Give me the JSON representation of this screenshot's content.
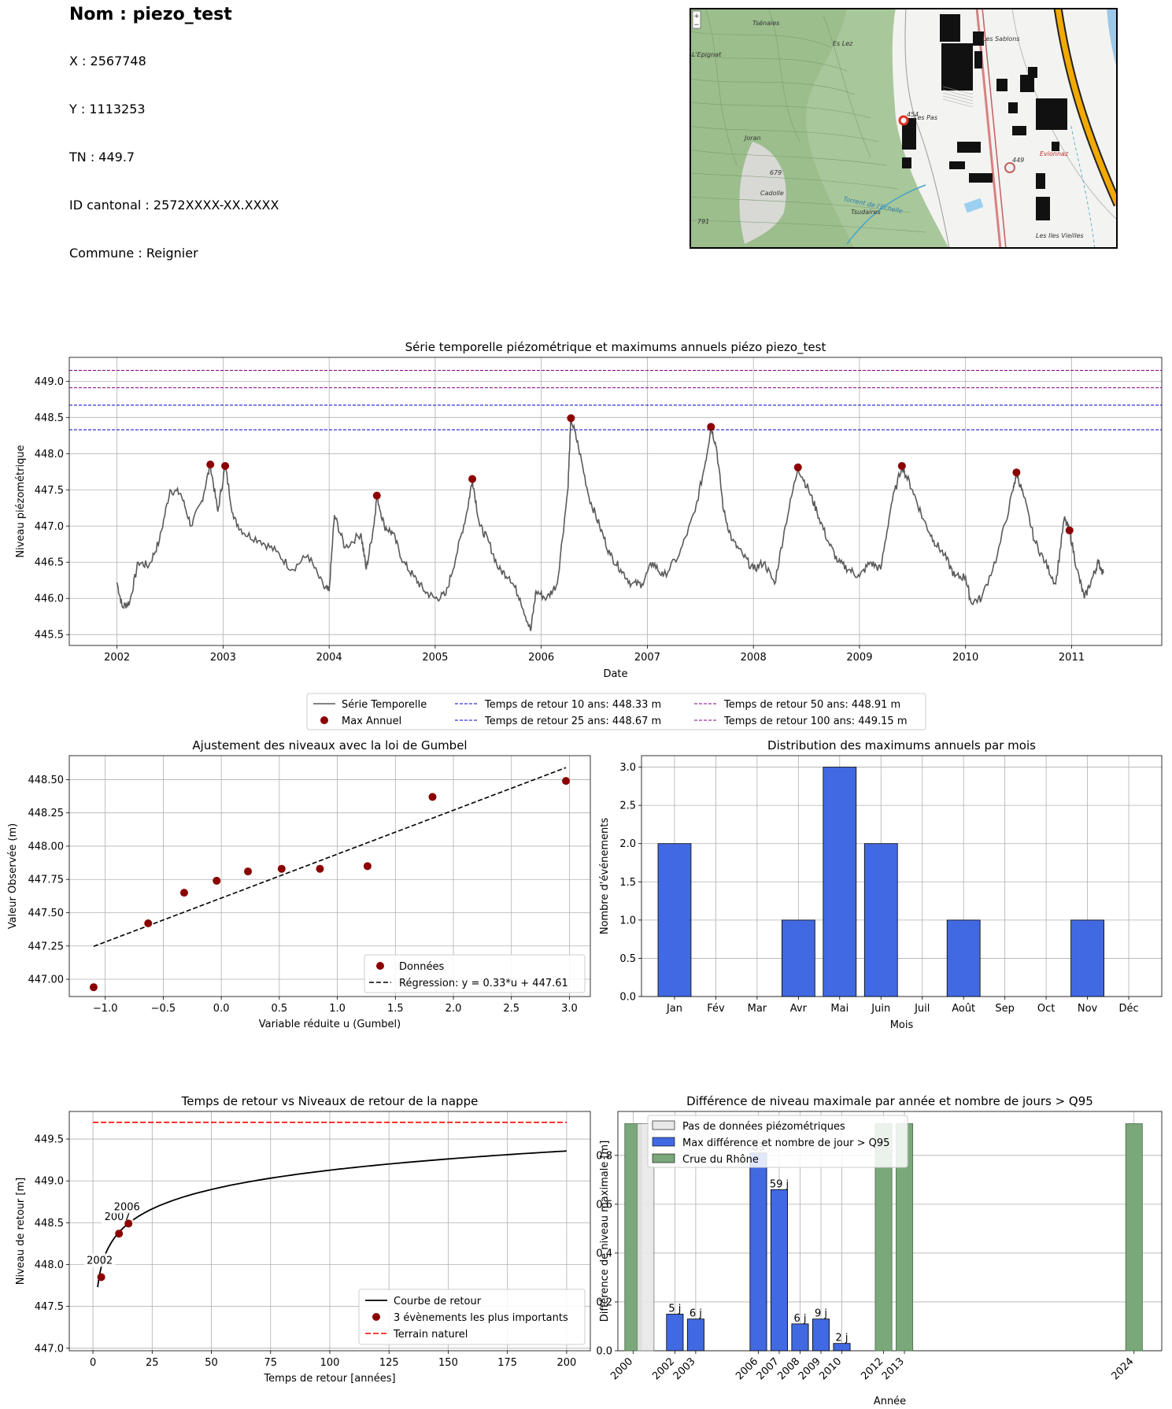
{
  "header": {
    "name_line": "Nom : piezo_test",
    "x_line": "X : 2567748",
    "y_line": "Y : 1113253",
    "tn_line": "TN : 449.7",
    "id_line": "ID cantonal : 2572XXXX-XX.XXXX",
    "commune_line": "Commune : Reignier"
  },
  "map": {
    "labels": [
      "Tsénaies",
      "Es Lez",
      "L'Epignat",
      "Les Sablons",
      "Les Pas",
      "Joran",
      "Evionnaz",
      "679",
      "Cadolle",
      "Torrent de l'Echelle",
      "Tsudaires",
      "791",
      "Les Iles Vieilles",
      "449",
      "454"
    ],
    "zoom_in": "+",
    "zoom_out": "−"
  },
  "chart_data": [
    {
      "id": "timeseries",
      "type": "line",
      "title": "Série temporelle piézométrique et maximums annuels piézo piezo_test",
      "xlabel": "Date",
      "ylabel": "Niveau piézométrique",
      "xlim": [
        2001.55,
        2011.85
      ],
      "ylim": [
        445.35,
        449.33
      ],
      "xticks": [
        2002,
        2003,
        2004,
        2005,
        2006,
        2007,
        2008,
        2009,
        2010,
        2011
      ],
      "yticks": [
        445.5,
        446.0,
        446.5,
        447.0,
        447.5,
        448.0,
        448.5,
        449.0
      ],
      "ytick_labels": [
        "445.5",
        "446.0",
        "446.5",
        "447.0",
        "447.5",
        "448.0",
        "448.5",
        "449.0"
      ],
      "grid": true,
      "series_line": {
        "name": "Série Temporelle",
        "color": "#5a5a5a",
        "keypoints": [
          [
            2002.0,
            446.22
          ],
          [
            2002.05,
            445.88
          ],
          [
            2002.12,
            445.95
          ],
          [
            2002.2,
            446.5
          ],
          [
            2002.3,
            446.45
          ],
          [
            2002.4,
            446.8
          ],
          [
            2002.5,
            447.5
          ],
          [
            2002.6,
            447.45
          ],
          [
            2002.7,
            447.0
          ],
          [
            2002.8,
            447.35
          ],
          [
            2002.88,
            447.85
          ],
          [
            2002.95,
            447.2
          ],
          [
            2003.02,
            447.83
          ],
          [
            2003.1,
            447.1
          ],
          [
            2003.2,
            446.9
          ],
          [
            2003.35,
            446.8
          ],
          [
            2003.5,
            446.65
          ],
          [
            2003.65,
            446.4
          ],
          [
            2003.8,
            446.6
          ],
          [
            2003.95,
            446.15
          ],
          [
            2004.0,
            446.1
          ],
          [
            2004.05,
            447.15
          ],
          [
            2004.15,
            446.7
          ],
          [
            2004.3,
            446.9
          ],
          [
            2004.35,
            446.4
          ],
          [
            2004.42,
            447.0
          ],
          [
            2004.45,
            447.42
          ],
          [
            2004.52,
            447.0
          ],
          [
            2004.6,
            446.9
          ],
          [
            2004.7,
            446.5
          ],
          [
            2004.8,
            446.3
          ],
          [
            2004.9,
            446.1
          ],
          [
            2005.0,
            446.0
          ],
          [
            2005.1,
            446.05
          ],
          [
            2005.2,
            446.6
          ],
          [
            2005.3,
            447.2
          ],
          [
            2005.35,
            447.65
          ],
          [
            2005.42,
            447.0
          ],
          [
            2005.5,
            446.8
          ],
          [
            2005.6,
            446.4
          ],
          [
            2005.7,
            446.3
          ],
          [
            2005.8,
            446.0
          ],
          [
            2005.9,
            445.55
          ],
          [
            2005.95,
            446.1
          ],
          [
            2006.05,
            446.0
          ],
          [
            2006.15,
            446.2
          ],
          [
            2006.25,
            447.5
          ],
          [
            2006.28,
            448.49
          ],
          [
            2006.35,
            448.1
          ],
          [
            2006.45,
            447.4
          ],
          [
            2006.55,
            447.0
          ],
          [
            2006.65,
            446.6
          ],
          [
            2006.75,
            446.4
          ],
          [
            2006.85,
            446.2
          ],
          [
            2006.95,
            446.2
          ],
          [
            2007.05,
            446.5
          ],
          [
            2007.15,
            446.3
          ],
          [
            2007.3,
            446.6
          ],
          [
            2007.45,
            447.2
          ],
          [
            2007.55,
            447.9
          ],
          [
            2007.6,
            448.37
          ],
          [
            2007.65,
            448.1
          ],
          [
            2007.72,
            447.2
          ],
          [
            2007.8,
            446.8
          ],
          [
            2007.9,
            446.6
          ],
          [
            2008.0,
            446.4
          ],
          [
            2008.1,
            446.5
          ],
          [
            2008.2,
            446.2
          ],
          [
            2008.3,
            447.0
          ],
          [
            2008.42,
            447.81
          ],
          [
            2008.52,
            447.5
          ],
          [
            2008.6,
            447.2
          ],
          [
            2008.7,
            446.8
          ],
          [
            2008.8,
            446.5
          ],
          [
            2008.9,
            446.4
          ],
          [
            2009.0,
            446.3
          ],
          [
            2009.1,
            446.5
          ],
          [
            2009.2,
            446.4
          ],
          [
            2009.3,
            447.3
          ],
          [
            2009.4,
            447.83
          ],
          [
            2009.5,
            447.5
          ],
          [
            2009.6,
            447.1
          ],
          [
            2009.7,
            446.8
          ],
          [
            2009.8,
            446.6
          ],
          [
            2009.9,
            446.3
          ],
          [
            2010.0,
            446.3
          ],
          [
            2010.05,
            445.95
          ],
          [
            2010.15,
            446.0
          ],
          [
            2010.3,
            446.6
          ],
          [
            2010.45,
            447.5
          ],
          [
            2010.48,
            447.74
          ],
          [
            2010.55,
            447.4
          ],
          [
            2010.65,
            446.8
          ],
          [
            2010.75,
            446.5
          ],
          [
            2010.85,
            446.2
          ],
          [
            2010.93,
            447.1
          ],
          [
            2010.98,
            446.94
          ],
          [
            2011.05,
            446.4
          ],
          [
            2011.12,
            446.0
          ],
          [
            2011.2,
            446.3
          ],
          [
            2011.25,
            446.5
          ],
          [
            2011.3,
            446.35
          ]
        ]
      },
      "annual_max": {
        "name": "Max Annuel",
        "color": "#8b0000",
        "points": [
          [
            2002.88,
            447.85
          ],
          [
            2003.02,
            447.83
          ],
          [
            2004.45,
            447.42
          ],
          [
            2005.35,
            447.65
          ],
          [
            2006.28,
            448.49
          ],
          [
            2007.6,
            448.37
          ],
          [
            2008.42,
            447.81
          ],
          [
            2009.4,
            447.83
          ],
          [
            2010.48,
            447.74
          ],
          [
            2010.98,
            446.94
          ]
        ]
      },
      "return_levels": [
        {
          "name": "Temps de retour 10 ans: 448.33 m",
          "value": 448.33,
          "color": "#0000cd"
        },
        {
          "name": "Temps de retour 25 ans: 448.67 m",
          "value": 448.67,
          "color": "#0000cd"
        },
        {
          "name": "Temps de retour 50 ans: 448.91 m",
          "value": 448.91,
          "color": "#800080"
        },
        {
          "name": "Temps de retour 100 ans: 449.15 m",
          "value": 449.15,
          "color": "#800080"
        }
      ],
      "legend_placement": "below"
    },
    {
      "id": "gumbel",
      "type": "scatter",
      "title": "Ajustement des niveaux avec la loi de Gumbel",
      "xlabel": "Variable réduite u (Gumbel)",
      "ylabel": "Valeur Observée (m)",
      "xlim": [
        -1.31,
        3.18
      ],
      "ylim": [
        446.87,
        448.68
      ],
      "xticks": [
        -1.0,
        -0.5,
        0.0,
        0.5,
        1.0,
        1.5,
        2.0,
        2.5,
        3.0
      ],
      "xtick_labels": [
        "−1.0",
        "−0.5",
        "0.0",
        "0.5",
        "1.0",
        "1.5",
        "2.0",
        "2.5",
        "3.0"
      ],
      "yticks": [
        447.0,
        447.25,
        447.5,
        447.75,
        448.0,
        448.25,
        448.5
      ],
      "ytick_labels": [
        "447.00",
        "447.25",
        "447.50",
        "447.75",
        "448.00",
        "448.25",
        "448.50"
      ],
      "grid": true,
      "points_name": "Données",
      "points_color": "#8b0000",
      "points": [
        [
          -1.1,
          446.94
        ],
        [
          -0.63,
          447.42
        ],
        [
          -0.32,
          447.65
        ],
        [
          -0.04,
          447.74
        ],
        [
          0.23,
          447.81
        ],
        [
          0.52,
          447.83
        ],
        [
          0.85,
          447.83
        ],
        [
          1.26,
          447.85
        ],
        [
          1.82,
          448.37
        ],
        [
          2.97,
          448.49
        ]
      ],
      "regression": {
        "name": "Régression: y = 0.33*u + 447.61",
        "slope": 0.33,
        "intercept": 447.61,
        "x_range": [
          -1.1,
          2.97
        ]
      },
      "legend_placement": "lower right"
    },
    {
      "id": "months",
      "type": "bar",
      "title": "Distribution des maximums annuels par mois",
      "xlabel": "Mois",
      "ylabel": "Nombre d'événements",
      "categories": [
        "Jan",
        "Fév",
        "Mar",
        "Avr",
        "Mai",
        "Juin",
        "Juil",
        "Août",
        "Sep",
        "Oct",
        "Nov",
        "Déc"
      ],
      "values": [
        2,
        0,
        0,
        1,
        3,
        2,
        0,
        1,
        0,
        0,
        1,
        0
      ],
      "ylim": [
        0,
        3.15
      ],
      "yticks": [
        0.0,
        0.5,
        1.0,
        1.5,
        2.0,
        2.5,
        3.0
      ],
      "ytick_labels": [
        "0.0",
        "0.5",
        "1.0",
        "1.5",
        "2.0",
        "2.5",
        "3.0"
      ],
      "color": "#4169e1",
      "grid": true
    },
    {
      "id": "return_curve",
      "type": "line",
      "title": "Temps de retour vs Niveaux de retour de la nappe",
      "xlabel": "Temps de retour [années]",
      "ylabel": "Niveau de retour [m]",
      "xlim": [
        -10,
        210
      ],
      "ylim": [
        446.97,
        449.83
      ],
      "xticks": [
        0,
        25,
        50,
        75,
        100,
        125,
        150,
        175,
        200
      ],
      "yticks": [
        447.0,
        447.5,
        448.0,
        448.5,
        449.0,
        449.5
      ],
      "ytick_labels": [
        "447.0",
        "447.5",
        "448.0",
        "448.5",
        "449.0",
        "449.5"
      ],
      "grid": true,
      "gumbel_params": {
        "mu": 447.61,
        "beta": 0.33,
        "t_range": [
          2,
          200
        ]
      },
      "curve_name": "Courbe de retour",
      "events_name": "3 évènements les plus importants",
      "events": [
        {
          "t": 3.5,
          "y": 447.85,
          "label": "2002"
        },
        {
          "t": 11,
          "y": 448.37,
          "label": "2007"
        },
        {
          "t": 15,
          "y": 448.49,
          "label": "2006"
        }
      ],
      "terrain": {
        "name": "Terrain naturel",
        "value": 449.7,
        "color": "#ff0000"
      },
      "legend_placement": "lower right"
    },
    {
      "id": "diff_year",
      "type": "bar",
      "title": "Différence de niveau maximale par année et nombre de jours > Q95",
      "xlabel": "Année",
      "ylabel": "Différence de niveau maximale [m]",
      "xlim": [
        1999.27,
        2025.33
      ],
      "ylim": [
        0,
        0.98
      ],
      "yticks": [
        0.0,
        0.2,
        0.4,
        0.6,
        0.8
      ],
      "ytick_labels": [
        "0.0",
        "0.2",
        "0.4",
        "0.6",
        "0.8"
      ],
      "xticks": [
        2000,
        2002,
        2003,
        2006,
        2007,
        2008,
        2009,
        2010,
        2012,
        2013,
        2024
      ],
      "grid": true,
      "legend": [
        {
          "name": "Pas de données piézométriques",
          "color": "#e8e8e8"
        },
        {
          "name": "Max différence et nombre de jour > Q95",
          "color": "#4169e1"
        },
        {
          "name": "Crue du Rhône",
          "color": "#7ba87b"
        }
      ],
      "nodata_bars": [
        {
          "year": 2000.6,
          "value": 0.93
        }
      ],
      "crue_bars": [
        {
          "year": 2000,
          "value": 0.93
        },
        {
          "year": 2012,
          "value": 0.93
        },
        {
          "year": 2013,
          "value": 0.93
        },
        {
          "year": 2024,
          "value": 0.93
        }
      ],
      "diff_bars": [
        {
          "year": 2002,
          "value": 0.15,
          "label": "5 j"
        },
        {
          "year": 2003,
          "value": 0.13,
          "label": "6 j"
        },
        {
          "year": 2006,
          "value": 0.81,
          "label": "83"
        },
        {
          "year": 2007,
          "value": 0.66,
          "label": "59 j"
        },
        {
          "year": 2008,
          "value": 0.11,
          "label": "6 j"
        },
        {
          "year": 2009,
          "value": 0.13,
          "label": "9 j"
        },
        {
          "year": 2010,
          "value": 0.03,
          "label": "2 j"
        }
      ],
      "legend_placement": "upper left"
    }
  ]
}
